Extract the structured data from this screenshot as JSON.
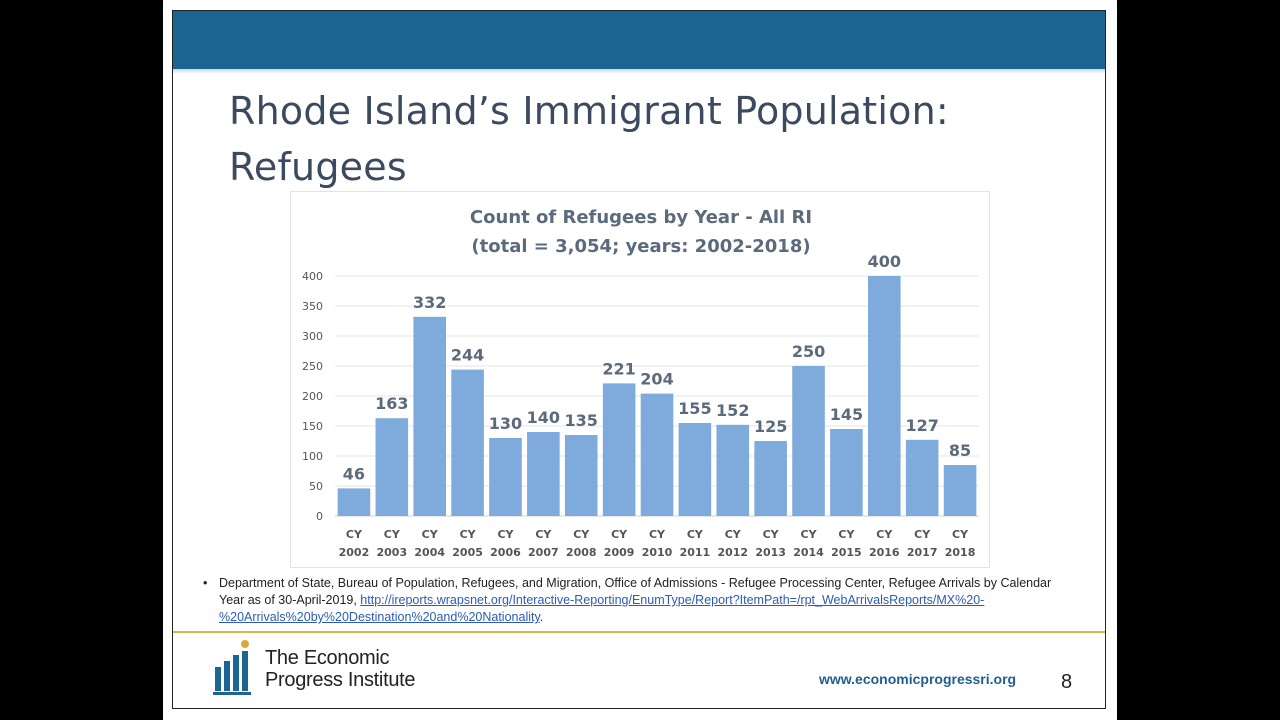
{
  "slide": {
    "title": "Rhode Island’s Immigrant Population: Refugees",
    "page_number": "8",
    "website": "www.economicprogressri.org",
    "logo": {
      "line1": "The Economic",
      "line2": "Progress Institute"
    },
    "source": {
      "bullet": "•",
      "text": "Department of State, Bureau of Population, Refugees, and Migration, Office of Admissions - Refugee Processing Center, Refugee Arrivals by Calendar Year as of 30-April-2019, ",
      "link": "http://ireports.wrapsnet.org/Interactive-Reporting/EnumType/Report?ItemPath=/rpt_WebArrivalsReports/MX%20-%20Arrivals%20by%20Destination%20and%20Nationality",
      "tail": "."
    },
    "colors": {
      "header_bar": "#1b6593",
      "bar_fill": "#7faadc",
      "rule": "#d9b54a"
    }
  },
  "chart_data": {
    "type": "bar",
    "title": "Count of Refugees by Year - All RI",
    "subtitle": "(total = 3,054; years: 2002-2018)",
    "categories": [
      "CY 2002",
      "CY 2003",
      "CY 2004",
      "CY 2005",
      "CY 2006",
      "CY 2007",
      "CY 2008",
      "CY 2009",
      "CY 2010",
      "CY 2011",
      "CY 2012",
      "CY 2013",
      "CY 2014",
      "CY 2015",
      "CY 2016",
      "CY 2017",
      "CY 2018"
    ],
    "values": [
      46,
      163,
      332,
      244,
      130,
      140,
      135,
      221,
      204,
      155,
      152,
      125,
      250,
      145,
      400,
      127,
      85
    ],
    "ylim": [
      0,
      400
    ],
    "yticks": [
      0,
      50,
      100,
      150,
      200,
      250,
      300,
      350,
      400
    ],
    "grid": true,
    "xlabel": "",
    "ylabel": ""
  }
}
